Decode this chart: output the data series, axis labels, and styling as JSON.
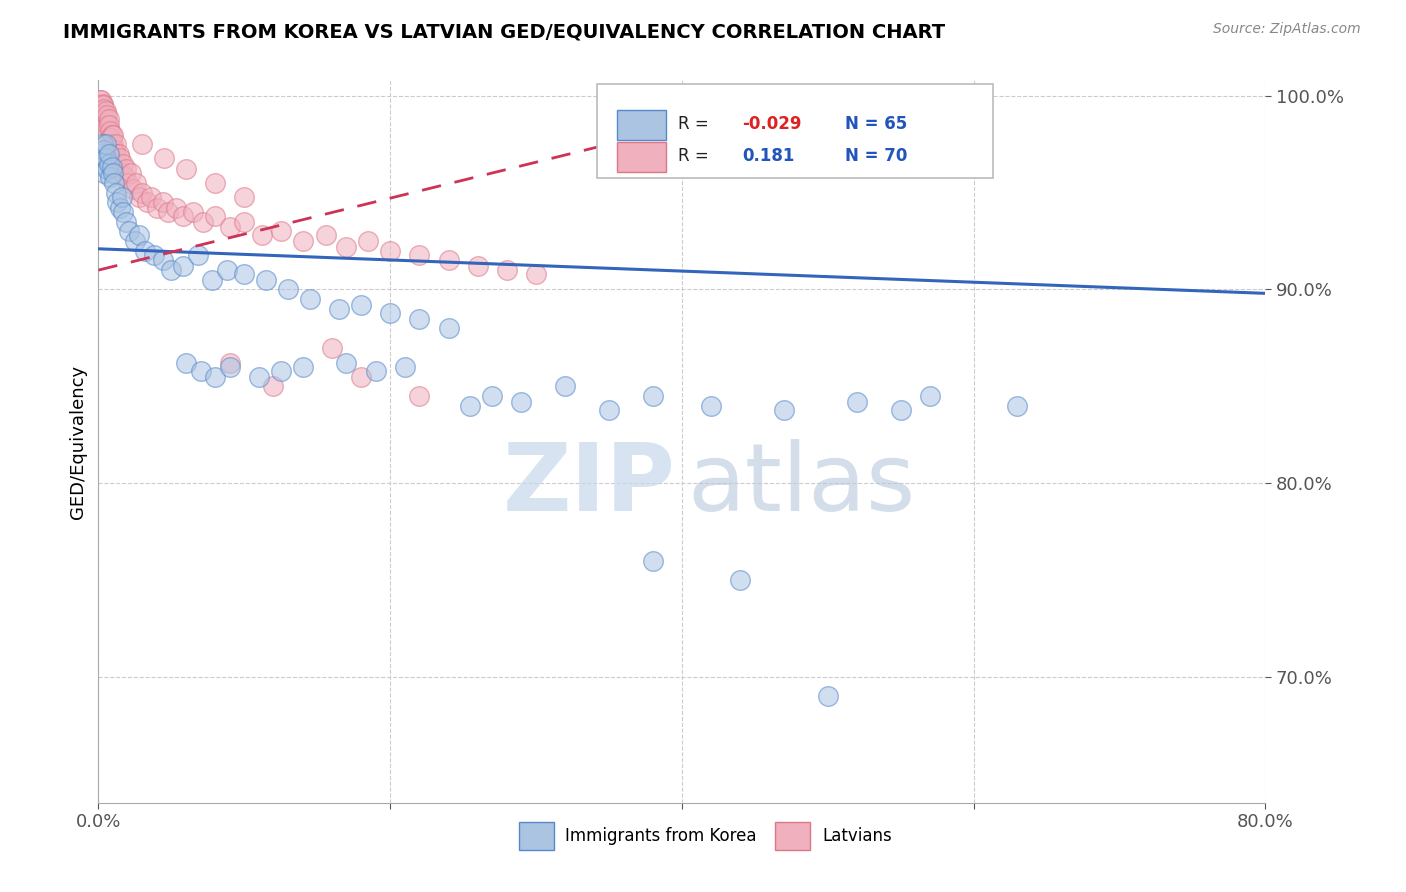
{
  "title": "IMMIGRANTS FROM KOREA VS LATVIAN GED/EQUIVALENCY CORRELATION CHART",
  "source": "Source: ZipAtlas.com",
  "ylabel": "GED/Equivalency",
  "xlabel_label1": "Immigrants from Korea",
  "xlabel_label2": "Latvians",
  "xmin": 0.0,
  "xmax": 0.8,
  "ymin": 0.635,
  "ymax": 1.008,
  "yticks": [
    0.7,
    0.8,
    0.9,
    1.0
  ],
  "ytick_labels": [
    "70.0%",
    "80.0%",
    "90.0%",
    "100.0%"
  ],
  "xticks": [
    0.0,
    0.2,
    0.4,
    0.6,
    0.8
  ],
  "xtick_labels": [
    "0.0%",
    "",
    "",
    "",
    "80.0%"
  ],
  "blue_color": "#aac4e2",
  "blue_edge": "#5588cc",
  "pink_color": "#f0b0be",
  "pink_edge": "#dd7788",
  "trend_blue_color": "#3366bb",
  "trend_pink_color": "#cc3355",
  "blue_trend_x": [
    0.0,
    0.8
  ],
  "blue_trend_y": [
    0.921,
    0.898
  ],
  "pink_trend_x": [
    0.0,
    0.35
  ],
  "pink_trend_y": [
    0.91,
    0.975
  ],
  "korea_x": [
    0.002,
    0.003,
    0.003,
    0.004,
    0.004,
    0.005,
    0.005,
    0.006,
    0.007,
    0.007,
    0.008,
    0.009,
    0.01,
    0.011,
    0.012,
    0.013,
    0.015,
    0.016,
    0.017,
    0.019,
    0.021,
    0.025,
    0.028,
    0.032,
    0.038,
    0.044,
    0.05,
    0.058,
    0.068,
    0.078,
    0.088,
    0.1,
    0.115,
    0.13,
    0.145,
    0.165,
    0.18,
    0.2,
    0.22,
    0.24,
    0.255,
    0.27,
    0.29,
    0.32,
    0.35,
    0.38,
    0.42,
    0.47,
    0.52,
    0.57,
    0.11,
    0.125,
    0.14,
    0.06,
    0.07,
    0.08,
    0.09,
    0.17,
    0.19,
    0.21,
    0.55,
    0.63,
    0.38,
    0.44,
    0.5
  ],
  "korea_y": [
    0.97,
    0.965,
    0.975,
    0.96,
    0.972,
    0.968,
    0.975,
    0.962,
    0.965,
    0.97,
    0.958,
    0.963,
    0.96,
    0.955,
    0.95,
    0.945,
    0.942,
    0.948,
    0.94,
    0.935,
    0.93,
    0.925,
    0.928,
    0.92,
    0.918,
    0.915,
    0.91,
    0.912,
    0.918,
    0.905,
    0.91,
    0.908,
    0.905,
    0.9,
    0.895,
    0.89,
    0.892,
    0.888,
    0.885,
    0.88,
    0.84,
    0.845,
    0.842,
    0.85,
    0.838,
    0.845,
    0.84,
    0.838,
    0.842,
    0.845,
    0.855,
    0.858,
    0.86,
    0.862,
    0.858,
    0.855,
    0.86,
    0.862,
    0.858,
    0.86,
    0.838,
    0.84,
    0.76,
    0.75,
    0.69
  ],
  "latvian_x": [
    0.001,
    0.001,
    0.002,
    0.002,
    0.003,
    0.003,
    0.003,
    0.004,
    0.004,
    0.005,
    0.005,
    0.006,
    0.006,
    0.007,
    0.007,
    0.008,
    0.008,
    0.009,
    0.01,
    0.01,
    0.011,
    0.012,
    0.012,
    0.013,
    0.014,
    0.015,
    0.016,
    0.017,
    0.018,
    0.019,
    0.02,
    0.022,
    0.024,
    0.026,
    0.028,
    0.03,
    0.033,
    0.036,
    0.04,
    0.044,
    0.048,
    0.053,
    0.058,
    0.065,
    0.072,
    0.08,
    0.09,
    0.1,
    0.112,
    0.125,
    0.14,
    0.156,
    0.17,
    0.185,
    0.2,
    0.22,
    0.24,
    0.26,
    0.28,
    0.3,
    0.03,
    0.045,
    0.06,
    0.08,
    0.1,
    0.16,
    0.22,
    0.18,
    0.09,
    0.12
  ],
  "latvian_y": [
    0.998,
    0.995,
    0.998,
    0.992,
    0.996,
    0.995,
    0.99,
    0.993,
    0.985,
    0.988,
    0.992,
    0.985,
    0.99,
    0.988,
    0.985,
    0.982,
    0.978,
    0.98,
    0.975,
    0.98,
    0.972,
    0.975,
    0.97,
    0.965,
    0.97,
    0.968,
    0.96,
    0.965,
    0.958,
    0.962,
    0.955,
    0.96,
    0.952,
    0.955,
    0.948,
    0.95,
    0.945,
    0.948,
    0.942,
    0.945,
    0.94,
    0.942,
    0.938,
    0.94,
    0.935,
    0.938,
    0.932,
    0.935,
    0.928,
    0.93,
    0.925,
    0.928,
    0.922,
    0.925,
    0.92,
    0.918,
    0.915,
    0.912,
    0.91,
    0.908,
    0.975,
    0.968,
    0.962,
    0.955,
    0.948,
    0.87,
    0.845,
    0.855,
    0.862,
    0.85
  ]
}
